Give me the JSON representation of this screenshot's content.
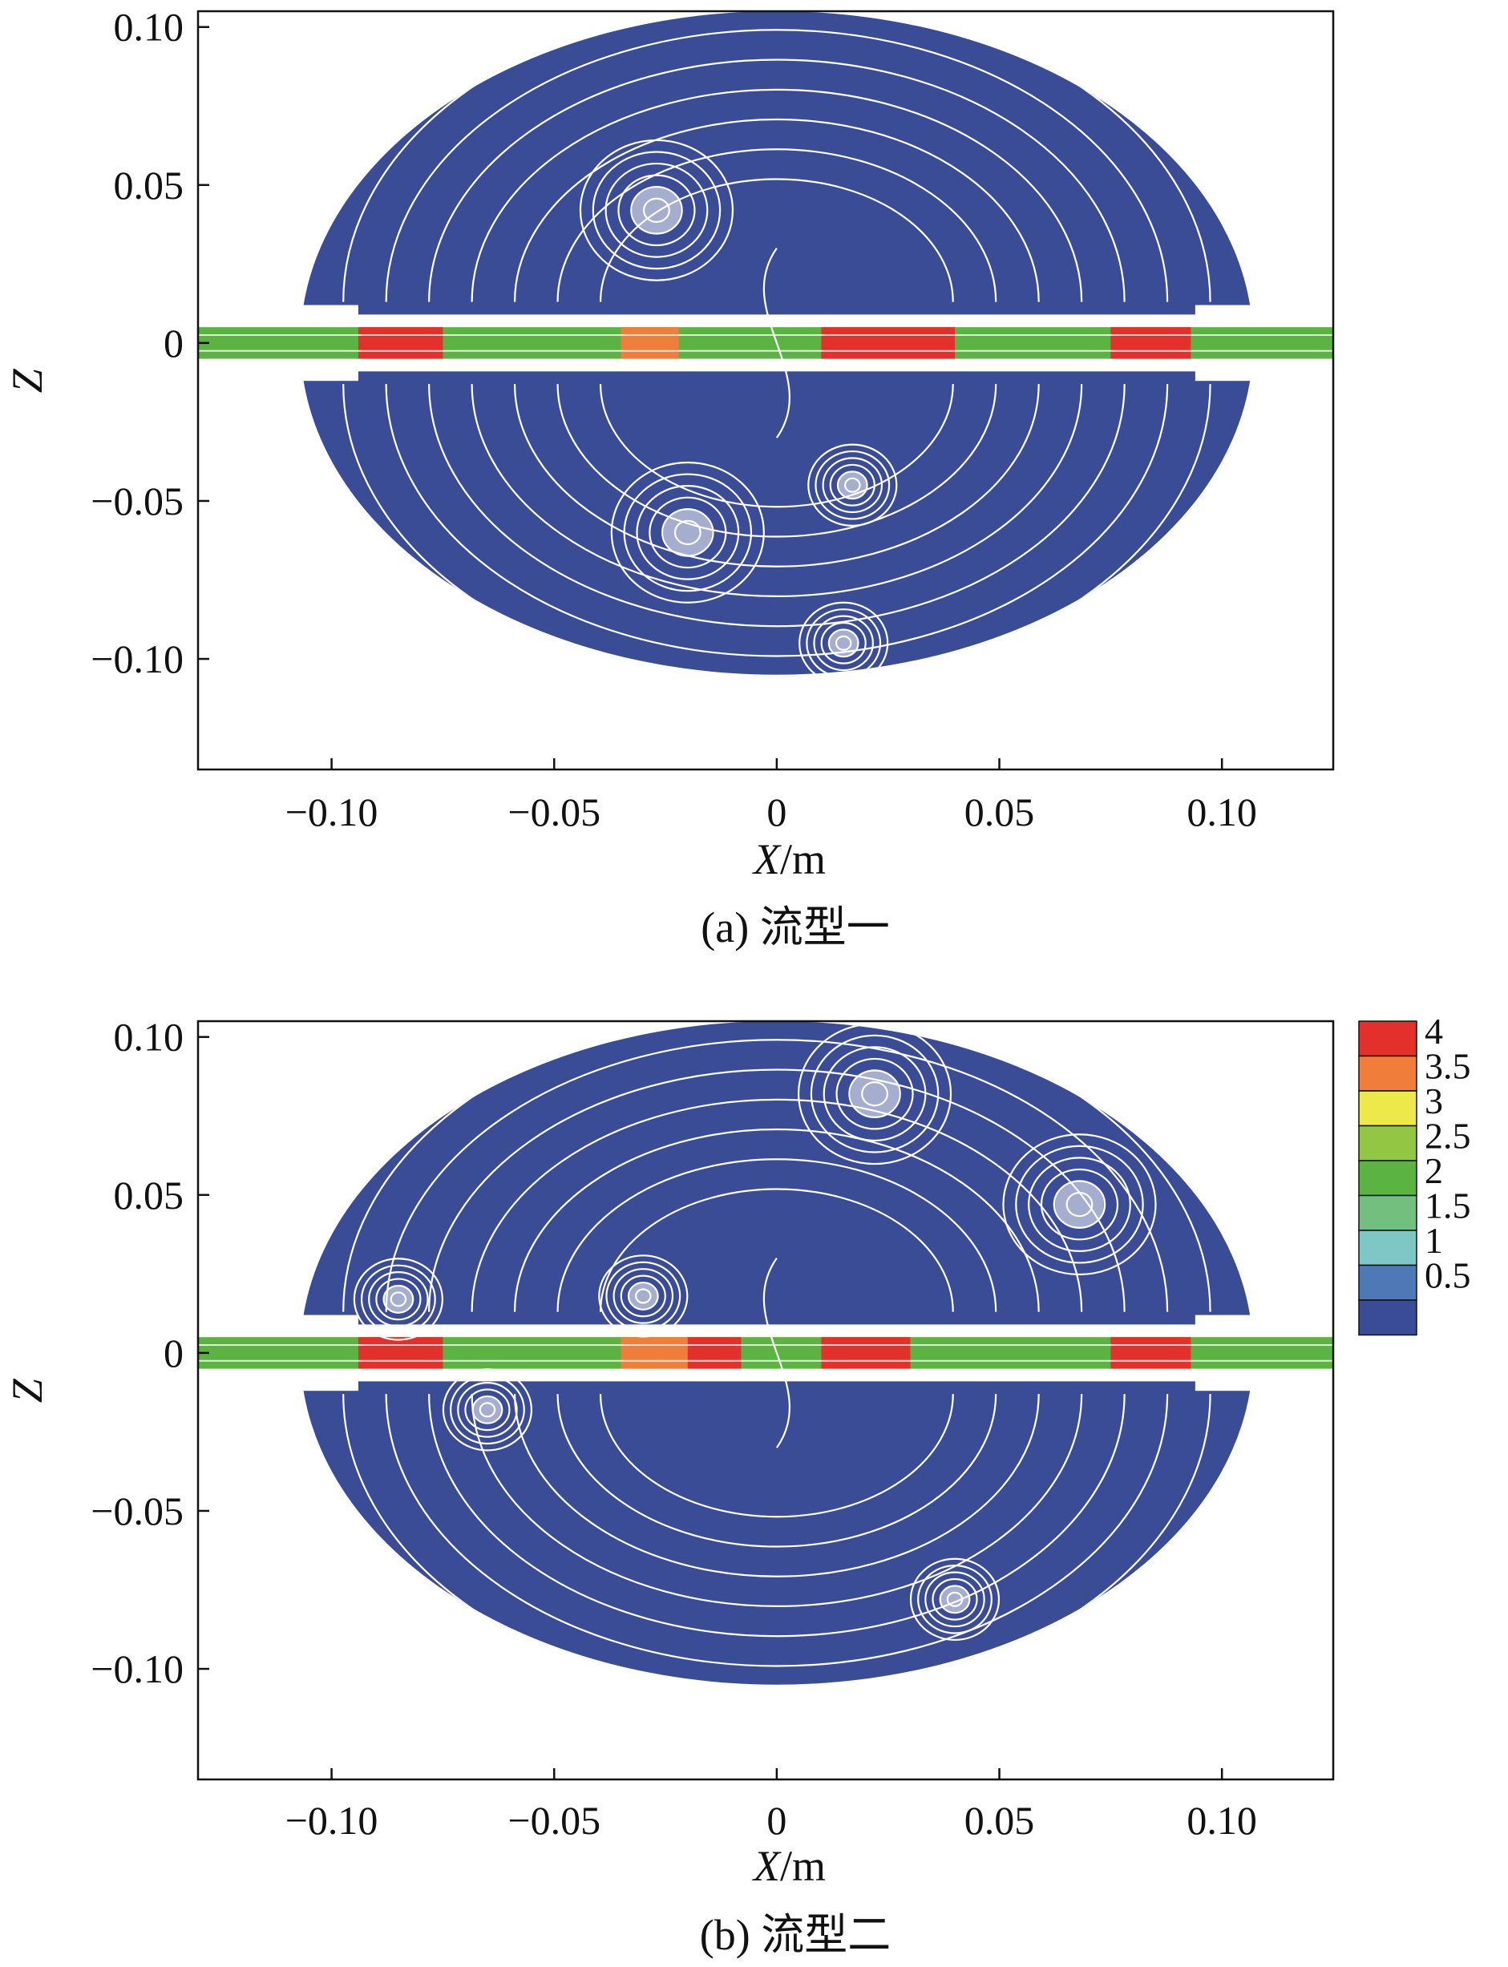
{
  "chart_data": [
    {
      "type": "heatmap",
      "caption": "(a) 流型一",
      "xlabel": "X/m",
      "ylabel": "Z",
      "xlim": [
        -0.13,
        0.125
      ],
      "ylim": [
        -0.135,
        0.105
      ],
      "xticks": [
        -0.1,
        -0.05,
        0,
        0.05,
        0.1
      ],
      "xtick_labels": [
        "−0.10",
        "−0.05",
        "0",
        "0.05",
        "0.10"
      ],
      "yticks": [
        0.1,
        0.05,
        0,
        -0.05,
        -0.1
      ],
      "ytick_labels": [
        "0.10",
        "0.05",
        "0",
        "−0.05",
        "−0.10"
      ],
      "grid": false,
      "vortex_centers": [
        [
          -0.027,
          0.042
        ],
        [
          -0.02,
          -0.06
        ],
        [
          0.017,
          -0.045
        ],
        [
          0.015,
          -0.095
        ]
      ],
      "jet_bands": [
        {
          "x": [
            -0.094,
            -0.075
          ],
          "level": 4
        },
        {
          "x": [
            -0.035,
            -0.022
          ],
          "level": 3.5
        },
        {
          "x": [
            0.01,
            0.04
          ],
          "level": 4
        },
        {
          "x": [
            0.075,
            0.093
          ],
          "level": 4
        }
      ]
    },
    {
      "type": "heatmap",
      "caption": "(b) 流型二",
      "xlabel": "X/m",
      "ylabel": "Z",
      "xlim": [
        -0.13,
        0.125
      ],
      "ylim": [
        -0.135,
        0.105
      ],
      "xticks": [
        -0.1,
        -0.05,
        0,
        0.05,
        0.1
      ],
      "xtick_labels": [
        "−0.10",
        "−0.05",
        "0",
        "0.05",
        "0.10"
      ],
      "yticks": [
        0.1,
        0.05,
        0,
        -0.05,
        -0.1
      ],
      "ytick_labels": [
        "0.10",
        "0.05",
        "0",
        "−0.05",
        "−0.10"
      ],
      "grid": false,
      "vortex_centers": [
        [
          0.022,
          0.082
        ],
        [
          0.068,
          0.047
        ],
        [
          -0.03,
          0.018
        ],
        [
          -0.085,
          0.017
        ],
        [
          -0.065,
          -0.018
        ],
        [
          0.04,
          -0.078
        ]
      ],
      "jet_bands": [
        {
          "x": [
            -0.094,
            -0.075
          ],
          "level": 4
        },
        {
          "x": [
            -0.035,
            -0.02
          ],
          "level": 3.5
        },
        {
          "x": [
            -0.02,
            -0.008
          ],
          "level": 4
        },
        {
          "x": [
            0.01,
            0.03
          ],
          "level": 4
        },
        {
          "x": [
            0.075,
            0.093
          ],
          "level": 4
        }
      ]
    }
  ],
  "colorbar": {
    "placement": "right of panel (b)",
    "levels": [
      {
        "label": "4",
        "color": "#e3302b"
      },
      {
        "label": "3.5",
        "color": "#f07d3a"
      },
      {
        "label": "3",
        "color": "#eee94a"
      },
      {
        "label": "2.5",
        "color": "#93c743"
      },
      {
        "label": "2",
        "color": "#5bb442"
      },
      {
        "label": "1.5",
        "color": "#73bf7e"
      },
      {
        "label": "1",
        "color": "#7ec7c6"
      },
      {
        "label": "0.5",
        "color": "#4f78b6"
      },
      {
        "label": "",
        "color": "#3b4c96"
      }
    ]
  },
  "colors": {
    "background_field": "#3b4c96",
    "streamline": "#ffffff",
    "jet_base": "#5bb442"
  }
}
